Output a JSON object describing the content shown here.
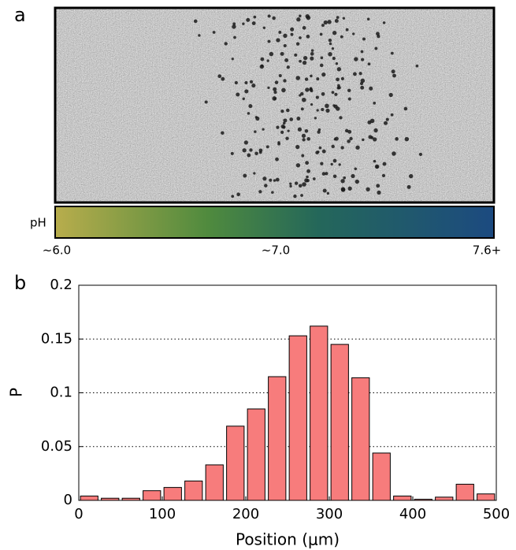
{
  "panel_a": {
    "label": "a",
    "colorbar": {
      "title": "pH",
      "labels": [
        "~6.0",
        "~7.0",
        "7.6+"
      ]
    }
  },
  "panel_b": {
    "label": "b"
  },
  "chart_data": {
    "type": "bar",
    "x": [
      12.5,
      37.5,
      62.5,
      87.5,
      112.5,
      137.5,
      162.5,
      187.5,
      212.5,
      237.5,
      262.5,
      287.5,
      312.5,
      337.5,
      362.5,
      387.5,
      412.5,
      437.5,
      462.5,
      487.5
    ],
    "values": [
      0.004,
      0.002,
      0.002,
      0.009,
      0.012,
      0.018,
      0.033,
      0.069,
      0.085,
      0.115,
      0.153,
      0.162,
      0.145,
      0.114,
      0.044,
      0.004,
      0.001,
      0.003,
      0.015,
      0.006
    ],
    "color": "#f77c7c",
    "xlabel": "Position (μm)",
    "ylabel": "P",
    "xlim": [
      0,
      500
    ],
    "xticks": [
      0,
      100,
      200,
      300,
      400,
      500
    ],
    "ylim": [
      0,
      0.2
    ],
    "yticks": [
      0,
      0.05,
      0.1,
      0.15,
      0.2
    ],
    "grid": true
  }
}
